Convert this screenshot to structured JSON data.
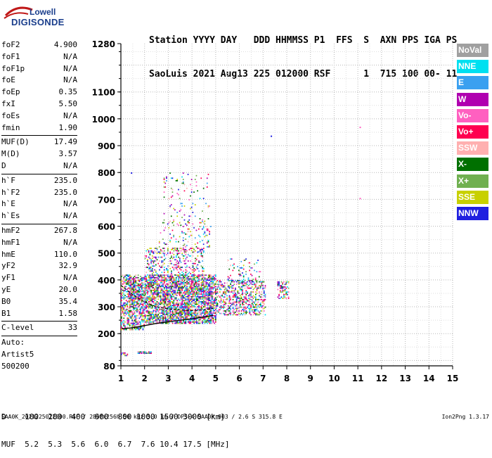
{
  "logo": {
    "line1": "Lowell",
    "line2": "DIGISONDE"
  },
  "header": {
    "line1": "Station YYYY DAY   DDD HHMMSS P1  FFS  S  AXN PPS IGA PS",
    "line2": "SaoLuis 2021 Aug13 225 012000 RSF      1  715 100 00- 11"
  },
  "params": [
    {
      "k": "foF2",
      "v": "4.900"
    },
    {
      "k": "foF1",
      "v": "N/A"
    },
    {
      "k": "foF1p",
      "v": "N/A"
    },
    {
      "k": "foE",
      "v": "N/A"
    },
    {
      "k": "foEp",
      "v": "0.35"
    },
    {
      "k": "fxI",
      "v": "5.50"
    },
    {
      "k": "foEs",
      "v": "N/A"
    },
    {
      "k": "fmin",
      "v": "1.90"
    },
    {
      "sep": true
    },
    {
      "k": "MUF(D)",
      "v": "17.49"
    },
    {
      "k": "M(D)",
      "v": "3.57"
    },
    {
      "k": "D",
      "v": "N/A"
    },
    {
      "sep": true
    },
    {
      "k": "h`F",
      "v": "235.0"
    },
    {
      "k": "h`F2",
      "v": "235.0"
    },
    {
      "k": "h`E",
      "v": "N/A"
    },
    {
      "k": "h`Es",
      "v": "N/A"
    },
    {
      "sep": true
    },
    {
      "k": "hmF2",
      "v": "267.8"
    },
    {
      "k": "hmF1",
      "v": "N/A"
    },
    {
      "k": "hmE",
      "v": "110.0"
    },
    {
      "k": "yF2",
      "v": "32.9"
    },
    {
      "k": "yF1",
      "v": "N/A"
    },
    {
      "k": "yE",
      "v": "20.0"
    },
    {
      "k": "B0",
      "v": "35.4"
    },
    {
      "k": "B1",
      "v": "1.58"
    },
    {
      "sep": true
    },
    {
      "k": "C-level",
      "v": "33"
    },
    {
      "sep": true
    },
    {
      "t": "Auto:"
    },
    {
      "t": "Artist5"
    },
    {
      "t": "500200"
    }
  ],
  "legend": [
    {
      "label": "NoVal",
      "color": "#a0a0a0"
    },
    {
      "label": "NNE",
      "color": "#00e0f0"
    },
    {
      "label": "E",
      "color": "#3aa0f0"
    },
    {
      "label": "W",
      "color": "#b000b0"
    },
    {
      "label": "Vo-",
      "color": "#ff60c0"
    },
    {
      "label": "Vo+",
      "color": "#ff0050"
    },
    {
      "label": "SSW",
      "color": "#ffb0b0"
    },
    {
      "label": "X-",
      "color": "#007000"
    },
    {
      "label": "X+",
      "color": "#70b050"
    },
    {
      "label": "SSE",
      "color": "#c8d000"
    },
    {
      "label": "NNW",
      "color": "#2020e0"
    }
  ],
  "chart_data": {
    "type": "scatter",
    "title": "",
    "xlabel": "",
    "ylabel": "",
    "xlim": [
      1,
      15
    ],
    "ylim": [
      80,
      1280
    ],
    "xticks": [
      1,
      2,
      3,
      4,
      5,
      6,
      7,
      8,
      9,
      10,
      11,
      12,
      13,
      14,
      15
    ],
    "yticks": [
      80,
      200,
      300,
      400,
      500,
      600,
      700,
      800,
      900,
      1000,
      1100,
      1280
    ],
    "grid": true,
    "legend_position": "right",
    "trace_points": [
      [
        1.05,
        218
      ],
      [
        1.5,
        222
      ],
      [
        2.0,
        230
      ],
      [
        2.5,
        238
      ],
      [
        3.0,
        244
      ],
      [
        3.5,
        250
      ],
      [
        4.0,
        255
      ],
      [
        4.5,
        262
      ],
      [
        4.9,
        268
      ]
    ],
    "trace_upper": [
      [
        1.0,
        380
      ],
      [
        1.5,
        345
      ],
      [
        2.0,
        318
      ],
      [
        2.5,
        300
      ],
      [
        3.0,
        292
      ],
      [
        3.5,
        288
      ],
      [
        4.0,
        286
      ],
      [
        4.5,
        288
      ],
      [
        4.9,
        294
      ]
    ],
    "isolated_points": [
      [
        7.35,
        935
      ],
      [
        11.1,
        968
      ],
      [
        11.1,
        703
      ],
      [
        1.45,
        798
      ]
    ],
    "regions": [
      {
        "x": [
          1.0,
          2.0
        ],
        "y": [
          215,
          420
        ],
        "density": 0.55
      },
      {
        "x": [
          1.3,
          1.9
        ],
        "y": [
          310,
          400
        ],
        "density": 0.5
      },
      {
        "x": [
          2.0,
          5.0
        ],
        "y": [
          240,
          420
        ],
        "density": 0.75
      },
      {
        "x": [
          2.0,
          4.5
        ],
        "y": [
          420,
          520
        ],
        "density": 0.25
      },
      {
        "x": [
          2.6,
          4.8
        ],
        "y": [
          500,
          620
        ],
        "density": 0.12
      },
      {
        "x": [
          2.8,
          4.8
        ],
        "y": [
          620,
          800
        ],
        "density": 0.05
      },
      {
        "x": [
          5.0,
          7.1
        ],
        "y": [
          270,
          400
        ],
        "density": 0.45
      },
      {
        "x": [
          5.5,
          6.9
        ],
        "y": [
          390,
          480
        ],
        "density": 0.12
      },
      {
        "x": [
          7.6,
          8.1
        ],
        "y": [
          330,
          395
        ],
        "density": 0.5
      },
      {
        "x": [
          1.7,
          2.3
        ],
        "y": [
          126,
          134
        ],
        "density": 0.9
      },
      {
        "x": [
          1.0,
          1.3
        ],
        "y": [
          120,
          130
        ],
        "density": 0.5
      }
    ]
  },
  "d_table": {
    "line1": "D    100  200  400  600  800 1000 1500 3000 [km]",
    "line2": "MUF  5.2  5.3  5.6  6.0  6.7  7.6 10.4 17.5 [MHz]"
  },
  "footer": {
    "left": "SAA0K_2021225012000.RSF / 280fx256h 50 kHz 5.0 km / DPS-4 SAA0K 903 / 2.6 S 315.8 E",
    "right": "Ion2Png 1.3.17"
  }
}
